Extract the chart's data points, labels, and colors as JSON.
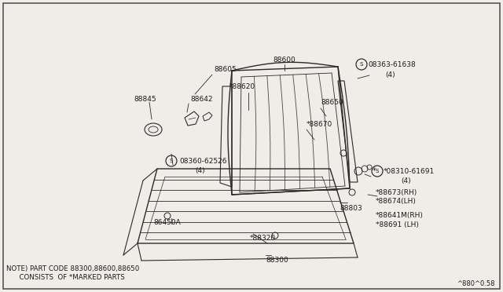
{
  "bg_color": "#f0ede8",
  "line_color": "#2a2a2a",
  "text_color": "#1a1a1a",
  "figure_ref": "^880^0.58",
  "note_line1": "NOTE) PART CODE 88300,88600,88650",
  "note_line2": "      CONSISTS  OF *MARKED PARTS"
}
